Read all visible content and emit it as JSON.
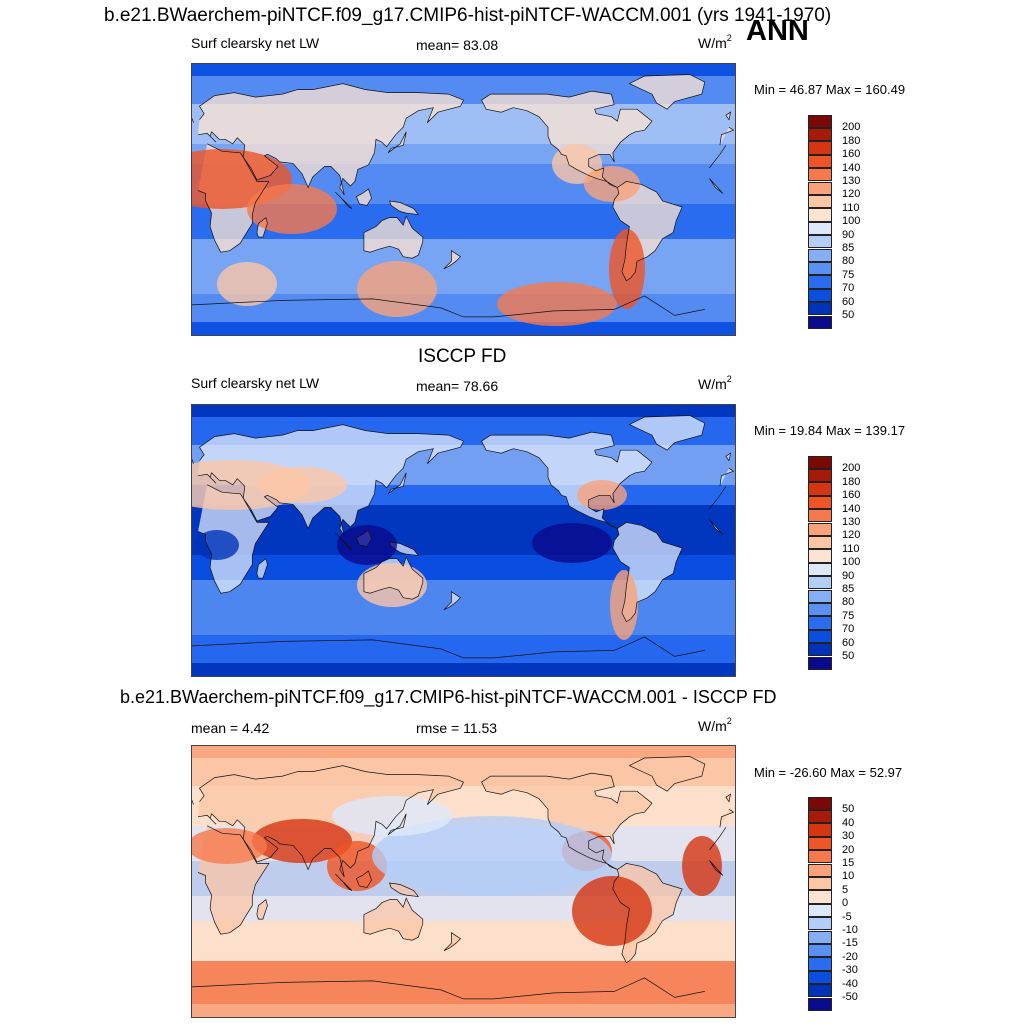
{
  "header": {
    "main_title": "b.e21.BWaerchem-piNTCF.f09_g17.CMIP6-hist-piNTCF-WACCM.001 (yrs 1941-1970)",
    "season": "ANN"
  },
  "panels": [
    {
      "id": "model",
      "field": "Surf clearsky net LW",
      "stat": "mean=  83.08",
      "units": "W/m",
      "units_exp": "2",
      "minmax": "Min =  46.87 Max = 160.49",
      "palette": "blue-red",
      "colorbar_labels": [
        "200",
        "180",
        "160",
        "140",
        "130",
        "120",
        "110",
        "100",
        "90",
        "85",
        "80",
        "75",
        "70",
        "60",
        "50"
      ]
    },
    {
      "id": "obs",
      "title": "ISCCP FD",
      "field": "Surf clearsky net LW",
      "stat": "mean=  78.66",
      "units": "W/m",
      "units_exp": "2",
      "minmax": "Min =  19.84 Max = 139.17",
      "palette": "blue-red",
      "colorbar_labels": [
        "200",
        "180",
        "160",
        "140",
        "130",
        "120",
        "110",
        "100",
        "90",
        "85",
        "80",
        "75",
        "70",
        "60",
        "50"
      ]
    },
    {
      "id": "diff",
      "title": "b.e21.BWaerchem-piNTCF.f09_g17.CMIP6-hist-piNTCF-WACCM.001 - ISCCP FD",
      "stat": "mean =   4.42",
      "rmse": "rmse =  11.53",
      "units": "W/m",
      "units_exp": "2",
      "minmax": "Min = -26.60 Max =  52.97",
      "palette": "diverging",
      "colorbar_labels": [
        "50",
        "40",
        "30",
        "20",
        "15",
        "10",
        "5",
        "0",
        "-5",
        "-10",
        "-15",
        "-20",
        "-30",
        "-40",
        "-50"
      ]
    }
  ],
  "colors": {
    "scale": [
      "#0a0a8c",
      "#0033b8",
      "#0a4ee0",
      "#2a6cf0",
      "#5a90f2",
      "#86aef5",
      "#b4cdf7",
      "#dde8fb",
      "#fde4d2",
      "#fbc6a6",
      "#f9a27a",
      "#f6794d",
      "#ef5426",
      "#d63512",
      "#a51a08",
      "#7a0804"
    ]
  }
}
